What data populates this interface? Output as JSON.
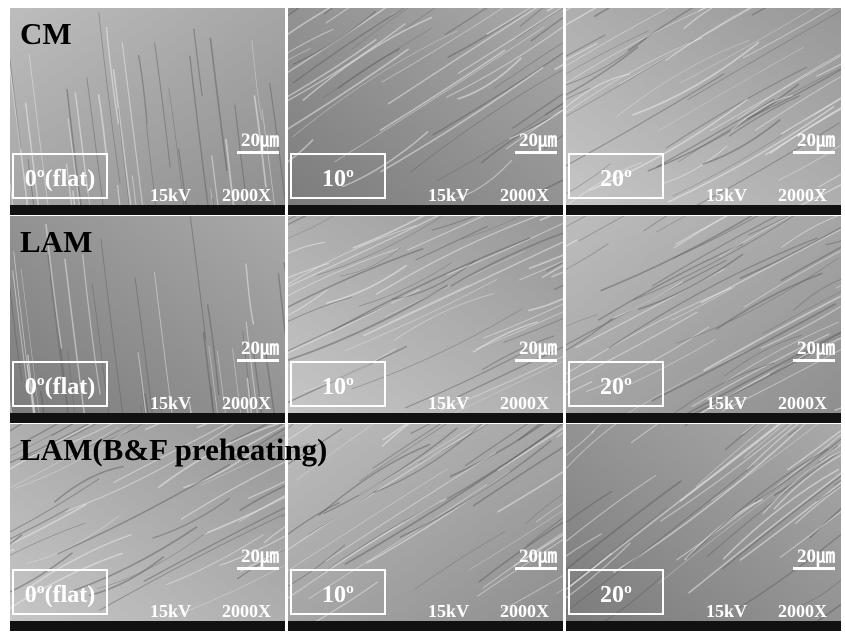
{
  "rows": [
    {
      "label": "CM",
      "panels": [
        {
          "angle": "0º(flat)",
          "scale": "20㎛",
          "voltage": "15kV",
          "magnification": "2000X"
        },
        {
          "angle": "10º",
          "scale": "20㎛",
          "voltage": "15kV",
          "magnification": "2000X"
        },
        {
          "angle": "20º",
          "scale": "20㎛",
          "voltage": "15kV",
          "magnification": "2000X"
        }
      ]
    },
    {
      "label": "LAM",
      "panels": [
        {
          "angle": "0º(flat)",
          "scale": "20㎛",
          "voltage": "15kV",
          "magnification": "2000X"
        },
        {
          "angle": "10º",
          "scale": "20㎛",
          "voltage": "15kV",
          "magnification": "2000X"
        },
        {
          "angle": "20º",
          "scale": "20㎛",
          "voltage": "15kV",
          "magnification": "2000X"
        }
      ]
    },
    {
      "label": "LAM(B&F preheating)",
      "panels": [
        {
          "angle": "0º(flat)",
          "scale": "20㎛",
          "voltage": "15kV",
          "magnification": "2000X"
        },
        {
          "angle": "10º",
          "scale": "20㎛",
          "voltage": "15kV",
          "magnification": "2000X"
        },
        {
          "angle": "20º",
          "scale": "20㎛",
          "voltage": "15kV",
          "magnification": "2000X"
        }
      ]
    }
  ]
}
